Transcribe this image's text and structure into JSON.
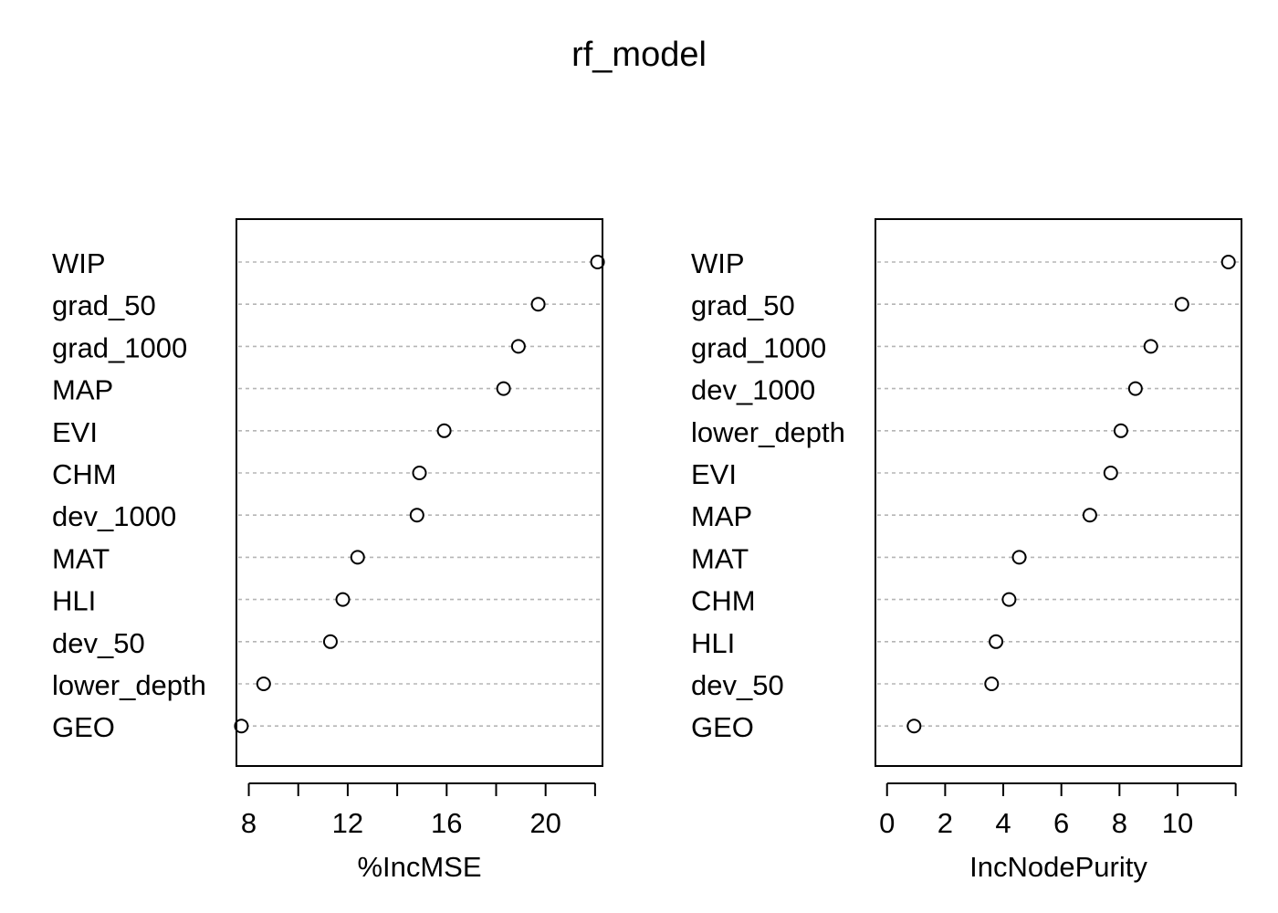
{
  "title": "rf_model",
  "chart_data": [
    {
      "type": "scatter",
      "subtype": "dotchart",
      "xlabel": "%IncMSE",
      "ylabel": "",
      "xlim": [
        7.5,
        22.3
      ],
      "xticks": [
        8,
        10,
        12,
        14,
        16,
        18,
        20,
        22
      ],
      "xtick_labels": [
        "8",
        "",
        "12",
        "",
        "16",
        "",
        "20",
        ""
      ],
      "grid": true,
      "categories": [
        "WIP",
        "grad_50",
        "grad_1000",
        "MAP",
        "EVI",
        "CHM",
        "dev_1000",
        "MAT",
        "HLI",
        "dev_50",
        "lower_depth",
        "GEO"
      ],
      "values": [
        22.1,
        19.7,
        18.9,
        18.3,
        15.9,
        14.9,
        14.8,
        12.4,
        11.8,
        11.3,
        8.6,
        7.7
      ]
    },
    {
      "type": "scatter",
      "subtype": "dotchart",
      "xlabel": "IncNodePurity",
      "ylabel": "",
      "xlim": [
        -0.4,
        12.2
      ],
      "xticks": [
        0,
        2,
        4,
        6,
        8,
        10,
        12
      ],
      "xtick_labels": [
        "0",
        "2",
        "4",
        "6",
        "8",
        "10",
        ""
      ],
      "grid": true,
      "categories": [
        "WIP",
        "grad_50",
        "grad_1000",
        "dev_1000",
        "lower_depth",
        "EVI",
        "MAP",
        "MAT",
        "CHM",
        "HLI",
        "dev_50",
        "GEO"
      ],
      "values": [
        11.75,
        10.15,
        9.08,
        8.55,
        8.05,
        7.7,
        6.98,
        4.55,
        4.2,
        3.75,
        3.6,
        0.93
      ]
    }
  ]
}
